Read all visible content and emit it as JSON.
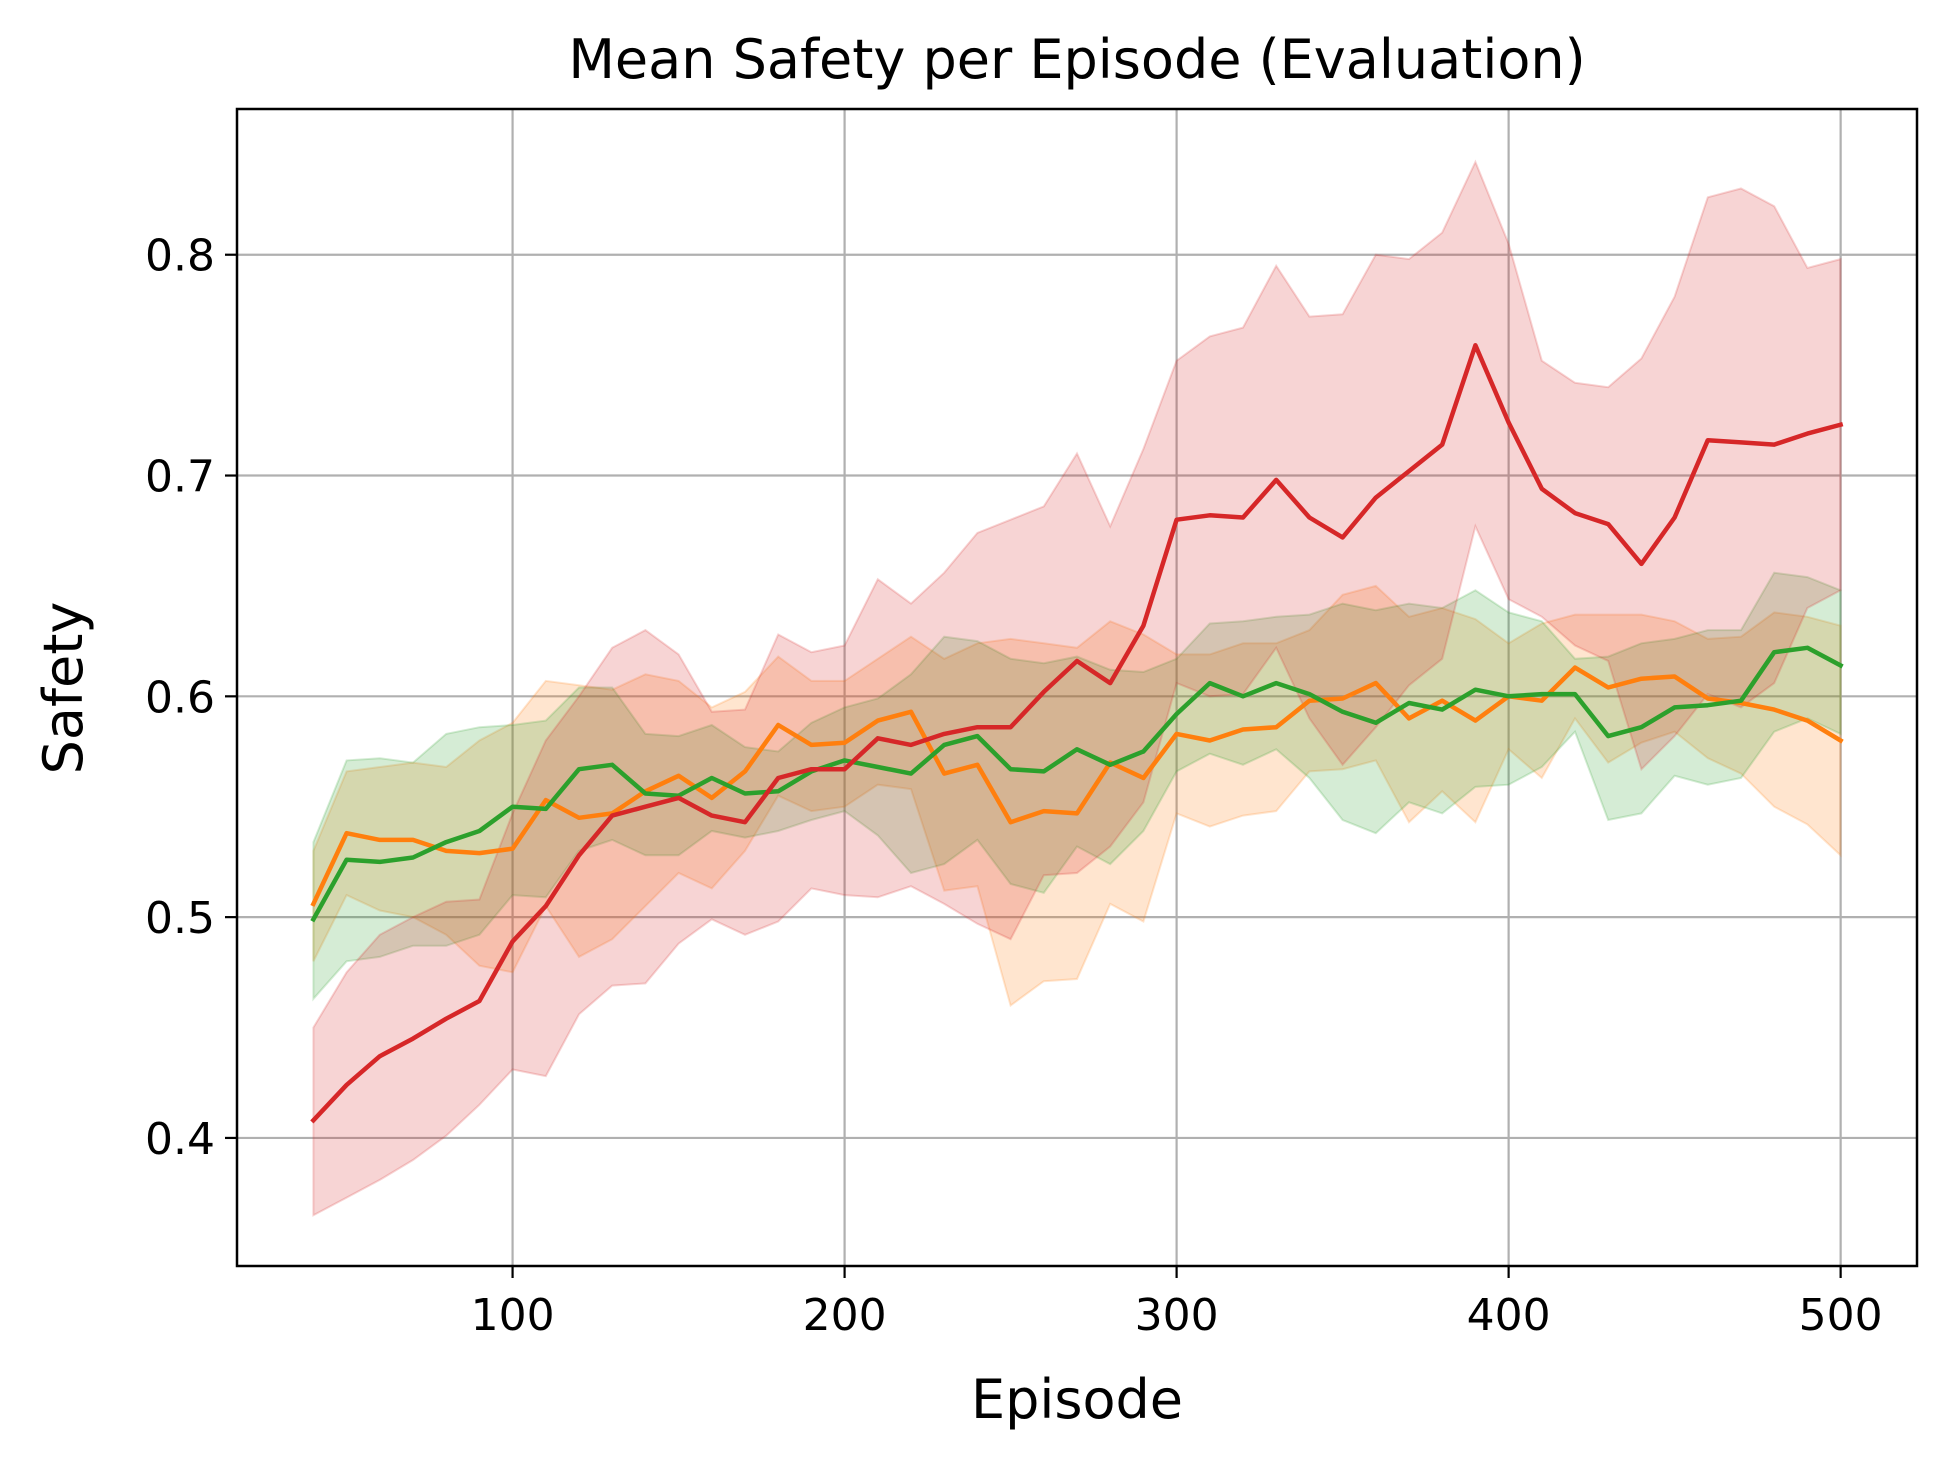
{
  "chart_data": {
    "type": "line",
    "title": "Mean Safety per Episode (Evaluation)",
    "xlabel": "Episode",
    "ylabel": "Safety",
    "xlim": [
      17,
      523
    ],
    "ylim": [
      0.342,
      0.866
    ],
    "xticks": [
      100,
      200,
      300,
      400,
      500
    ],
    "yticks": [
      0.4,
      0.5,
      0.6,
      0.7,
      0.8
    ],
    "xtick_labels": [
      "100",
      "200",
      "300",
      "400",
      "500"
    ],
    "ytick_labels": [
      "0.4",
      "0.5",
      "0.6",
      "0.7",
      "0.8"
    ],
    "grid": true,
    "x": [
      40,
      50,
      60,
      70,
      80,
      90,
      100,
      110,
      120,
      130,
      140,
      150,
      160,
      170,
      180,
      190,
      200,
      210,
      220,
      230,
      240,
      250,
      260,
      270,
      280,
      290,
      300,
      310,
      320,
      330,
      340,
      350,
      360,
      370,
      380,
      390,
      400,
      410,
      420,
      430,
      440,
      450,
      460,
      470,
      480,
      490,
      500
    ],
    "series": [
      {
        "name": "orange",
        "color": "#ff7f0e",
        "values": [
          0.506,
          0.538,
          0.535,
          0.535,
          0.53,
          0.529,
          0.531,
          0.553,
          0.545,
          0.547,
          0.557,
          0.564,
          0.554,
          0.566,
          0.587,
          0.578,
          0.579,
          0.589,
          0.593,
          0.565,
          0.569,
          0.543,
          0.548,
          0.547,
          0.57,
          0.563,
          0.583,
          0.58,
          0.585,
          0.586,
          0.598,
          0.599,
          0.606,
          0.59,
          0.598,
          0.589,
          0.6,
          0.598,
          0.613,
          0.604,
          0.608,
          0.609,
          0.599,
          0.597,
          0.594,
          0.589,
          0.58
        ],
        "lower": [
          0.48,
          0.51,
          0.503,
          0.5,
          0.492,
          0.478,
          0.475,
          0.505,
          0.482,
          0.49,
          0.505,
          0.52,
          0.513,
          0.53,
          0.555,
          0.548,
          0.55,
          0.56,
          0.558,
          0.512,
          0.514,
          0.46,
          0.471,
          0.472,
          0.506,
          0.498,
          0.547,
          0.541,
          0.546,
          0.548,
          0.566,
          0.567,
          0.571,
          0.543,
          0.557,
          0.543,
          0.576,
          0.563,
          0.59,
          0.57,
          0.579,
          0.584,
          0.572,
          0.565,
          0.55,
          0.542,
          0.528
        ],
        "upper": [
          0.53,
          0.566,
          0.568,
          0.57,
          0.568,
          0.58,
          0.588,
          0.607,
          0.605,
          0.603,
          0.61,
          0.607,
          0.595,
          0.602,
          0.618,
          0.607,
          0.607,
          0.617,
          0.627,
          0.617,
          0.624,
          0.626,
          0.624,
          0.622,
          0.634,
          0.628,
          0.619,
          0.619,
          0.624,
          0.624,
          0.63,
          0.646,
          0.65,
          0.636,
          0.64,
          0.635,
          0.624,
          0.633,
          0.637,
          0.637,
          0.637,
          0.634,
          0.626,
          0.627,
          0.638,
          0.636,
          0.632
        ]
      },
      {
        "name": "green",
        "color": "#2ca02c",
        "values": [
          0.499,
          0.526,
          0.525,
          0.527,
          0.534,
          0.539,
          0.55,
          0.549,
          0.567,
          0.569,
          0.556,
          0.555,
          0.563,
          0.556,
          0.557,
          0.566,
          0.571,
          0.568,
          0.565,
          0.578,
          0.582,
          0.567,
          0.566,
          0.576,
          0.569,
          0.575,
          0.592,
          0.606,
          0.6,
          0.606,
          0.601,
          0.593,
          0.588,
          0.597,
          0.594,
          0.603,
          0.6,
          0.601,
          0.601,
          0.582,
          0.586,
          0.595,
          0.596,
          0.598,
          0.62,
          0.622,
          0.614
        ],
        "lower": [
          0.463,
          0.48,
          0.482,
          0.487,
          0.487,
          0.492,
          0.51,
          0.509,
          0.53,
          0.535,
          0.528,
          0.528,
          0.539,
          0.536,
          0.539,
          0.544,
          0.548,
          0.537,
          0.52,
          0.524,
          0.535,
          0.515,
          0.511,
          0.532,
          0.524,
          0.539,
          0.566,
          0.574,
          0.569,
          0.576,
          0.563,
          0.544,
          0.538,
          0.552,
          0.547,
          0.559,
          0.56,
          0.568,
          0.584,
          0.544,
          0.547,
          0.564,
          0.56,
          0.563,
          0.584,
          0.59,
          0.583
        ],
        "upper": [
          0.534,
          0.571,
          0.572,
          0.57,
          0.583,
          0.586,
          0.587,
          0.589,
          0.604,
          0.604,
          0.583,
          0.582,
          0.587,
          0.577,
          0.575,
          0.588,
          0.595,
          0.599,
          0.61,
          0.627,
          0.625,
          0.617,
          0.615,
          0.618,
          0.612,
          0.611,
          0.617,
          0.633,
          0.634,
          0.636,
          0.637,
          0.642,
          0.639,
          0.642,
          0.64,
          0.648,
          0.638,
          0.634,
          0.617,
          0.618,
          0.624,
          0.626,
          0.63,
          0.63,
          0.656,
          0.654,
          0.648
        ]
      },
      {
        "name": "red",
        "color": "#d62728",
        "values": [
          0.408,
          0.424,
          0.437,
          0.445,
          0.454,
          0.462,
          0.489,
          0.505,
          0.528,
          0.546,
          0.55,
          0.554,
          0.546,
          0.543,
          0.563,
          0.567,
          0.567,
          0.581,
          0.578,
          0.583,
          0.586,
          0.586,
          0.602,
          0.616,
          0.606,
          0.632,
          0.68,
          0.682,
          0.681,
          0.698,
          0.681,
          0.672,
          0.69,
          0.702,
          0.714,
          0.759,
          0.724,
          0.694,
          0.683,
          0.678,
          0.66,
          0.681,
          0.716,
          0.715,
          0.714,
          0.719,
          0.723
        ],
        "lower": [
          0.365,
          0.373,
          0.381,
          0.39,
          0.401,
          0.415,
          0.431,
          0.428,
          0.456,
          0.469,
          0.47,
          0.488,
          0.499,
          0.492,
          0.498,
          0.513,
          0.51,
          0.509,
          0.514,
          0.506,
          0.497,
          0.49,
          0.519,
          0.52,
          0.532,
          0.552,
          0.606,
          0.6,
          0.601,
          0.622,
          0.59,
          0.569,
          0.586,
          0.605,
          0.617,
          0.677,
          0.644,
          0.636,
          0.623,
          0.616,
          0.567,
          0.582,
          0.601,
          0.595,
          0.606,
          0.64,
          0.648
        ],
        "upper": [
          0.45,
          0.475,
          0.492,
          0.5,
          0.507,
          0.508,
          0.547,
          0.58,
          0.6,
          0.622,
          0.63,
          0.619,
          0.593,
          0.594,
          0.628,
          0.62,
          0.623,
          0.653,
          0.642,
          0.656,
          0.674,
          0.68,
          0.686,
          0.71,
          0.677,
          0.712,
          0.752,
          0.763,
          0.767,
          0.795,
          0.772,
          0.773,
          0.8,
          0.798,
          0.81,
          0.842,
          0.805,
          0.752,
          0.742,
          0.74,
          0.753,
          0.781,
          0.826,
          0.83,
          0.822,
          0.794,
          0.798
        ]
      }
    ]
  }
}
